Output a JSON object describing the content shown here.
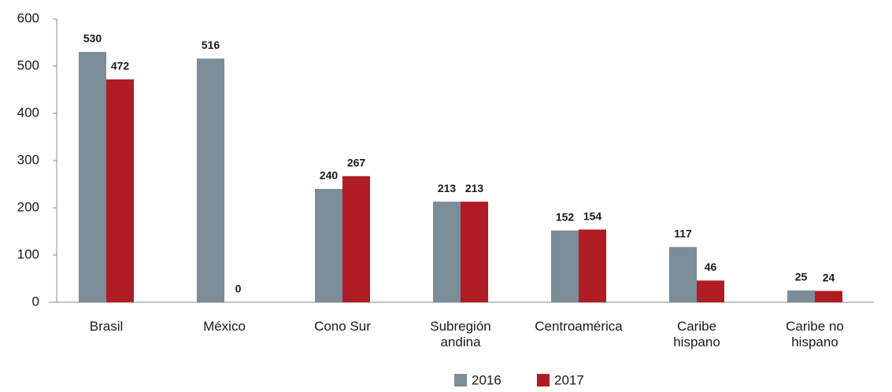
{
  "chart_data": {
    "type": "bar",
    "categories": [
      "Brasil",
      "México",
      "Cono Sur",
      "Subregión\nandina",
      "Centroamérica",
      "Caribe\nhispano",
      "Caribe no\nhispano"
    ],
    "series": [
      {
        "name": "2016",
        "color": "#7b8d99",
        "values": [
          530,
          516,
          240,
          213,
          152,
          117,
          25
        ]
      },
      {
        "name": "2017",
        "color": "#b01c24",
        "values": [
          472,
          0,
          267,
          213,
          154,
          46,
          24
        ]
      }
    ],
    "ylim": [
      0,
      600
    ],
    "yticks": [
      0,
      100,
      200,
      300,
      400,
      500,
      600
    ],
    "grid": false,
    "legend": "bottom"
  }
}
